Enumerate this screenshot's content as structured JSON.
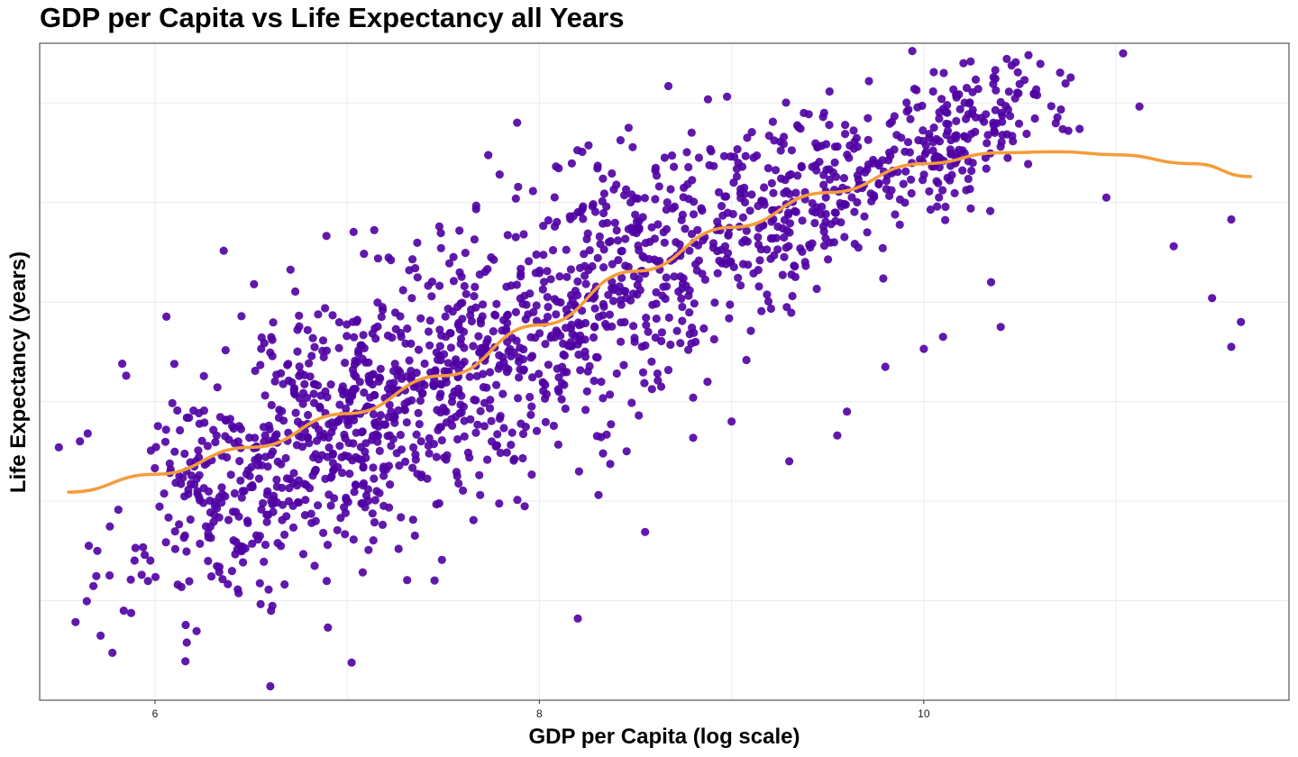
{
  "chart_data": {
    "type": "scatter",
    "title": "GDP per Capita vs Life Expectancy all Years",
    "xlabel": "GDP per Capita (log scale)",
    "ylabel": "Life Expectancy (years)",
    "xlim": [
      5.4,
      11.9
    ],
    "ylim": [
      20,
      86
    ],
    "x_ticks": [
      6,
      8,
      10
    ],
    "x_tick_labels": [
      "6",
      "8",
      "10"
    ],
    "y_gridlines": [
      30,
      40,
      50,
      60,
      70,
      80
    ],
    "y_tick_labels_visible": false,
    "grid": true,
    "legend": "none",
    "point_count_approx": 1700,
    "trend": {
      "type": "smooth",
      "x": [
        5.55,
        6.0,
        6.5,
        7.0,
        7.5,
        8.0,
        8.5,
        9.0,
        9.5,
        10.0,
        10.4,
        10.7,
        11.0,
        11.4,
        11.7
      ],
      "y": [
        40.9,
        42.7,
        45.4,
        48.8,
        52.6,
        57.7,
        63.1,
        67.5,
        71.0,
        73.9,
        75.0,
        75.1,
        74.8,
        73.9,
        72.6
      ]
    },
    "clusters": [
      {
        "x_center": 6.6,
        "x_spread": 0.45,
        "y_center": 43.5,
        "y_spread": 6.5,
        "n": 430
      },
      {
        "x_center": 7.4,
        "x_spread": 0.45,
        "y_center": 51.0,
        "y_spread": 7.5,
        "n": 420
      },
      {
        "x_center": 8.3,
        "x_spread": 0.45,
        "y_center": 60.5,
        "y_spread": 7.0,
        "n": 380
      },
      {
        "x_center": 9.3,
        "x_spread": 0.45,
        "y_center": 70.0,
        "y_spread": 4.5,
        "n": 330
      },
      {
        "x_center": 10.2,
        "x_spread": 0.3,
        "y_center": 76.5,
        "y_spread": 3.0,
        "n": 180
      }
    ],
    "outliers": [
      {
        "x": 5.5,
        "y": 45.4
      },
      {
        "x": 5.65,
        "y": 46.8
      },
      {
        "x": 5.7,
        "y": 35.0
      },
      {
        "x": 5.85,
        "y": 52.6
      },
      {
        "x": 6.6,
        "y": 21.4
      },
      {
        "x": 6.9,
        "y": 27.3
      },
      {
        "x": 8.2,
        "y": 28.2
      },
      {
        "x": 8.55,
        "y": 36.9
      },
      {
        "x": 8.8,
        "y": 50.4
      },
      {
        "x": 9.0,
        "y": 48.0
      },
      {
        "x": 9.3,
        "y": 44.0
      },
      {
        "x": 9.6,
        "y": 49.0
      },
      {
        "x": 9.8,
        "y": 53.5
      },
      {
        "x": 10.0,
        "y": 55.3
      },
      {
        "x": 10.35,
        "y": 62.0
      },
      {
        "x": 10.4,
        "y": 57.5
      },
      {
        "x": 10.95,
        "y": 70.5
      },
      {
        "x": 11.3,
        "y": 65.6
      },
      {
        "x": 11.5,
        "y": 60.4
      },
      {
        "x": 11.6,
        "y": 68.3
      },
      {
        "x": 11.6,
        "y": 55.5
      },
      {
        "x": 11.65,
        "y": 58.0
      },
      {
        "x": 10.1,
        "y": 56.5
      },
      {
        "x": 9.55,
        "y": 46.6
      }
    ],
    "colors": {
      "points": "#4f00a3",
      "trend": "#f59c3a",
      "grid": "#ebebeb",
      "panel_border": "#333333",
      "background": "#ffffff"
    }
  }
}
